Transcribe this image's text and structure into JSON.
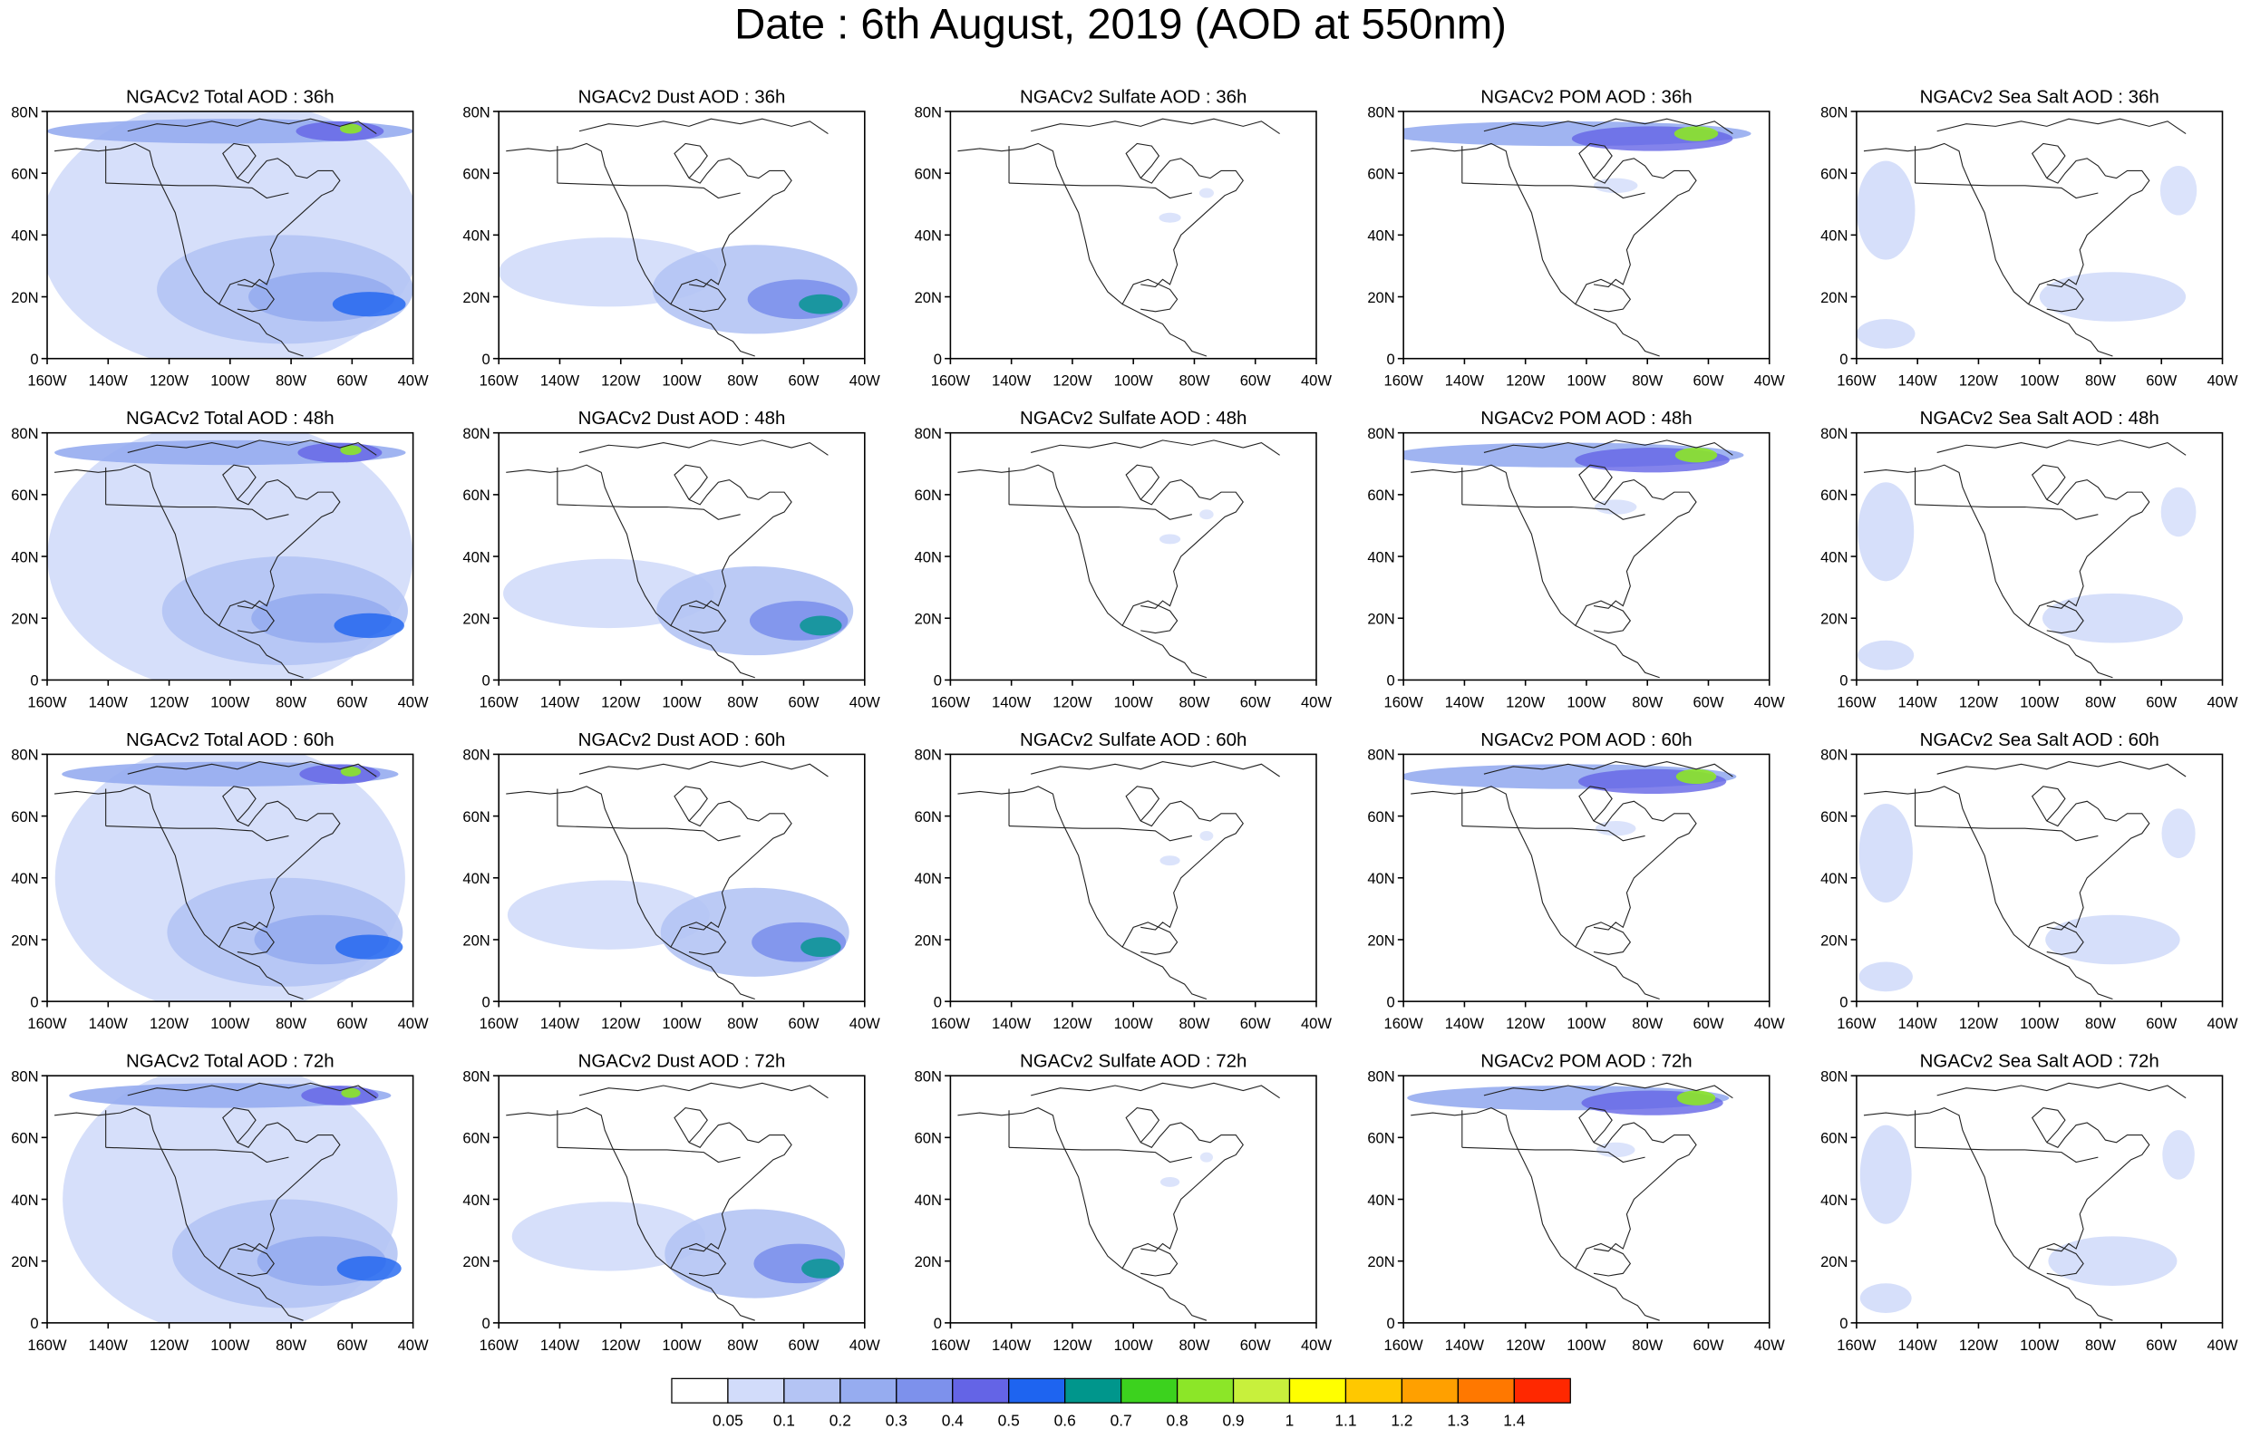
{
  "title": "Date : 6th August, 2019 (AOD at 550nm)",
  "map_region": "North America, 160W-40W, 0-80N",
  "axes": {
    "x_ticks": [
      "160W",
      "140W",
      "120W",
      "100W",
      "80W",
      "60W",
      "40W"
    ],
    "y_ticks": [
      "80N",
      "60N",
      "40N",
      "20N",
      "0"
    ]
  },
  "panel_titles": [
    [
      "NGACv2 Total AOD : 36h",
      "NGACv2 Dust AOD : 36h",
      "NGACv2 Sulfate AOD : 36h",
      "NGACv2 POM AOD : 36h",
      "NGACv2 Sea Salt AOD : 36h"
    ],
    [
      "NGACv2 Total AOD : 48h",
      "NGACv2 Dust AOD : 48h",
      "NGACv2 Sulfate AOD : 48h",
      "NGACv2 POM AOD : 48h",
      "NGACv2 Sea Salt AOD : 48h"
    ],
    [
      "NGACv2 Total AOD : 60h",
      "NGACv2 Dust AOD : 60h",
      "NGACv2 Sulfate AOD : 60h",
      "NGACv2 POM AOD : 60h",
      "NGACv2 Sea Salt AOD : 60h"
    ],
    [
      "NGACv2 Total AOD : 72h",
      "NGACv2 Dust AOD : 72h",
      "NGACv2 Sulfate AOD : 72h",
      "NGACv2 POM AOD : 72h",
      "NGACv2 Sea Salt  AOD : 72h"
    ]
  ],
  "colorbar": {
    "labels": [
      "0.05",
      "0.1",
      "0.2",
      "0.3",
      "0.4",
      "0.5",
      "0.6",
      "0.7",
      "0.8",
      "0.9",
      "1",
      "1.1",
      "1.2",
      "1.3",
      "1.4"
    ],
    "colors": [
      "#ffffff",
      "#d2dcfa",
      "#b4c4f4",
      "#96acf0",
      "#7d91ec",
      "#6464e6",
      "#1e64f0",
      "#00968c",
      "#3cd21e",
      "#8ce628",
      "#c8f03c",
      "#ffff00",
      "#ffc800",
      "#ffa000",
      "#ff7800",
      "#ff2800"
    ]
  }
}
